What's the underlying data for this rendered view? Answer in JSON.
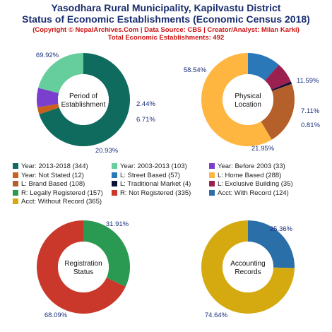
{
  "header": {
    "title_line1": "Yasodhara Rural Municipality, Kapilvastu District",
    "title_line2": "Status of Economic Establishments (Economic Census 2018)",
    "subtitle_line1": "(Copyright © NepalArchives.Com | Data Source: CBS | Creator/Analyst: Milan Karki)",
    "subtitle_line2": "Total Economic Establishments: 492"
  },
  "chart_data": [
    {
      "type": "pie",
      "center_label": [
        "Period of",
        "Establishment"
      ],
      "slices": [
        {
          "name": "Year: 2013-2018",
          "value": 344,
          "label": "69.92%",
          "color": "#0e6b5e"
        },
        {
          "name": "Year: Not Stated",
          "value": 12,
          "label": "2.44%",
          "color": "#c8601e"
        },
        {
          "name": "Year: Before 2003",
          "value": 33,
          "label": "6.71%",
          "color": "#7a3fcf"
        },
        {
          "name": "Year: 2003-2013",
          "value": 103,
          "label": "20.93%",
          "color": "#66ce9c"
        }
      ]
    },
    {
      "type": "pie",
      "center_label": [
        "Physical",
        "Location"
      ],
      "slices": [
        {
          "name": "L: Street Based",
          "value": 57,
          "label": "11.59%",
          "color": "#2a78b8"
        },
        {
          "name": "L: Exclusive Building",
          "value": 35,
          "label": "7.11%",
          "color": "#9b1f4f"
        },
        {
          "name": "L: Traditional Market",
          "value": 4,
          "label": "0.81%",
          "color": "#0c0f3a"
        },
        {
          "name": "L: Brand Based",
          "value": 108,
          "label": "21.95%",
          "color": "#b5602a"
        },
        {
          "name": "L: Home Based",
          "value": 288,
          "label": "58.54%",
          "color": "#ffb640"
        }
      ]
    },
    {
      "type": "pie",
      "center_label": [
        "Registration",
        "Status"
      ],
      "slices": [
        {
          "name": "R: Legally Registered",
          "value": 157,
          "label": "31.91%",
          "color": "#2a9a52"
        },
        {
          "name": "R: Not Registered",
          "value": 335,
          "label": "68.09%",
          "color": "#c9382b"
        }
      ]
    },
    {
      "type": "pie",
      "center_label": [
        "Accounting",
        "Records"
      ],
      "slices": [
        {
          "name": "Acct: With Record",
          "value": 124,
          "label": "25.36%",
          "color": "#2a6fa8"
        },
        {
          "name": "Acct: Without Record",
          "value": 365,
          "label": "74.64%",
          "color": "#d4aa10"
        }
      ]
    }
  ],
  "legend": [
    {
      "text": "Year: 2013-2018 (344)",
      "color": "#0e6b5e"
    },
    {
      "text": "Year: 2003-2013 (103)",
      "color": "#66ce9c"
    },
    {
      "text": "Year: Before 2003 (33)",
      "color": "#7a3fcf"
    },
    {
      "text": "Year: Not Stated (12)",
      "color": "#c8601e"
    },
    {
      "text": "L: Street Based (57)",
      "color": "#2a78b8"
    },
    {
      "text": "L: Home Based (288)",
      "color": "#ffb640"
    },
    {
      "text": "L: Brand Based (108)",
      "color": "#b5602a"
    },
    {
      "text": "L: Traditional Market (4)",
      "color": "#0c0f3a"
    },
    {
      "text": "L: Exclusive Building (35)",
      "color": "#9b1f4f"
    },
    {
      "text": "R: Legally Registered (157)",
      "color": "#2a9a52"
    },
    {
      "text": "R: Not Registered (335)",
      "color": "#c9382b"
    },
    {
      "text": "Acct: With Record (124)",
      "color": "#2a6fa8"
    },
    {
      "text": "Acct: Without Record (365)",
      "color": "#d4aa10"
    }
  ]
}
